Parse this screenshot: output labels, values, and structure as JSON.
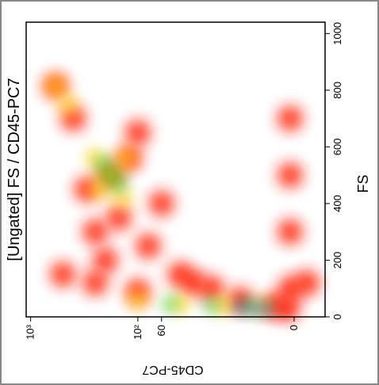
{
  "chart_data": {
    "type": "scatter",
    "title": "[Ungated] FS / CD45-PC7",
    "x_label": "CD45-PC7",
    "y_label": "FS",
    "xscale": "asinh",
    "xlim": [
      1100,
      -5
    ],
    "ylim": [
      0,
      1040
    ],
    "xticks": [
      {
        "value": 1000,
        "label": "10³"
      },
      {
        "value": 100,
        "label": "10²"
      },
      60,
      0
    ],
    "yticks": [
      0,
      200,
      400,
      600,
      800,
      1000
    ],
    "series": [
      {
        "color": "#ff1a00",
        "x": [
          181,
          300,
          120,
          250,
          100,
          400,
          585,
          150,
          80,
          40,
          20,
          10,
          3,
          1,
          0.5,
          0.6,
          0.6,
          0.6,
          200,
          60,
          30,
          -2,
          500,
          250,
          100
        ],
        "y": [
          500,
          450,
          560,
          300,
          650,
          700,
          815,
          350,
          250,
          150,
          100,
          60,
          40,
          30,
          100,
          300,
          500,
          700,
          200,
          400,
          120,
          120,
          150,
          120,
          90
        ]
      },
      {
        "color": "#ffd000",
        "x": [
          181,
          230,
          130,
          140,
          250,
          585,
          450,
          100,
          40,
          15,
          5
        ],
        "y": [
          500,
          450,
          560,
          420,
          560,
          815,
          750,
          60,
          45,
          40,
          35
        ]
      },
      {
        "color": "#33cc33",
        "x": [
          181,
          150,
          210,
          20,
          8,
          50
        ],
        "y": [
          500,
          470,
          540,
          40,
          35,
          45
        ]
      },
      {
        "color": "#0055dd",
        "x": [
          6,
          4,
          10
        ],
        "y": [
          30,
          28,
          35
        ]
      }
    ]
  }
}
